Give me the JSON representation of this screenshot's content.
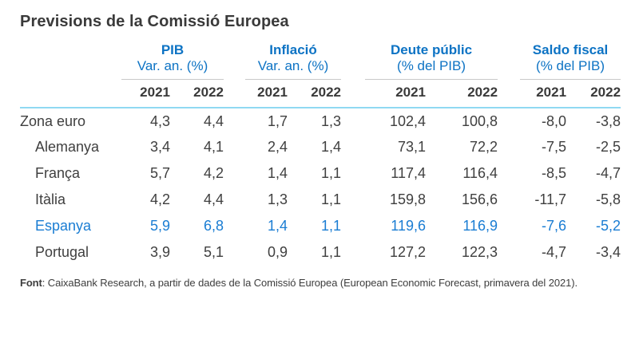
{
  "title": "Previsions de la Comissió Europea",
  "table": {
    "groups": [
      {
        "name": "PIB",
        "subtitle": "Var. an. (%)"
      },
      {
        "name": "Inflació",
        "subtitle": "Var. an. (%)"
      },
      {
        "name": "Deute públic",
        "subtitle": "(% del PIB)"
      },
      {
        "name": "Saldo fiscal",
        "subtitle": "(% del PIB)"
      }
    ],
    "years": [
      "2021",
      "2022"
    ],
    "rows": [
      {
        "label": "Zona euro",
        "values": [
          "4,3",
          "4,4",
          "1,7",
          "1,3",
          "102,4",
          "100,8",
          "-8,0",
          "-3,8"
        ]
      },
      {
        "label": "Alemanya",
        "values": [
          "3,4",
          "4,1",
          "2,4",
          "1,4",
          "73,1",
          "72,2",
          "-7,5",
          "-2,5"
        ]
      },
      {
        "label": "França",
        "values": [
          "5,7",
          "4,2",
          "1,4",
          "1,1",
          "117,4",
          "116,4",
          "-8,5",
          "-4,7"
        ]
      },
      {
        "label": "Itàlia",
        "values": [
          "4,2",
          "4,4",
          "1,3",
          "1,1",
          "159,8",
          "156,6",
          "-11,7",
          "-5,8"
        ]
      },
      {
        "label": "Espanya",
        "values": [
          "5,9",
          "6,8",
          "1,4",
          "1,1",
          "119,6",
          "116,9",
          "-7,6",
          "-5,2"
        ]
      },
      {
        "label": "Portugal",
        "values": [
          "3,9",
          "5,1",
          "0,9",
          "1,1",
          "127,2",
          "122,3",
          "-4,7",
          "-3,4"
        ]
      }
    ]
  },
  "footer": {
    "label": "Font",
    "text": ": CaixaBank Research, a partir de dades de la Comissió Europea (European Economic Forecast, primavera del 2021)."
  },
  "colors": {
    "accent_blue": "#0d73c4",
    "highlight_blue": "#1a7dd3",
    "rule_light_blue": "#8fd9f2",
    "rule_gray": "#c9c9c9",
    "text_dark": "#3f3f3f"
  },
  "chart_data": {
    "type": "table",
    "title": "Previsions de la Comissió Europea",
    "column_groups": [
      {
        "name": "PIB",
        "unit": "Var. an. (%)"
      },
      {
        "name": "Inflació",
        "unit": "Var. an. (%)"
      },
      {
        "name": "Deute públic",
        "unit": "% del PIB"
      },
      {
        "name": "Saldo fiscal",
        "unit": "% del PIB"
      }
    ],
    "years": [
      2021,
      2022
    ],
    "rows": [
      {
        "region": "Zona euro",
        "pib": [
          4.3,
          4.4
        ],
        "inflacio": [
          1.7,
          1.3
        ],
        "deute_public": [
          102.4,
          100.8
        ],
        "saldo_fiscal": [
          -8.0,
          -3.8
        ]
      },
      {
        "region": "Alemanya",
        "pib": [
          3.4,
          4.1
        ],
        "inflacio": [
          2.4,
          1.4
        ],
        "deute_public": [
          73.1,
          72.2
        ],
        "saldo_fiscal": [
          -7.5,
          -2.5
        ]
      },
      {
        "region": "França",
        "pib": [
          5.7,
          4.2
        ],
        "inflacio": [
          1.4,
          1.1
        ],
        "deute_public": [
          117.4,
          116.4
        ],
        "saldo_fiscal": [
          -8.5,
          -4.7
        ]
      },
      {
        "region": "Itàlia",
        "pib": [
          4.2,
          4.4
        ],
        "inflacio": [
          1.3,
          1.1
        ],
        "deute_public": [
          159.8,
          156.6
        ],
        "saldo_fiscal": [
          -11.7,
          -5.8
        ]
      },
      {
        "region": "Espanya",
        "pib": [
          5.9,
          6.8
        ],
        "inflacio": [
          1.4,
          1.1
        ],
        "deute_public": [
          119.6,
          116.9
        ],
        "saldo_fiscal": [
          -7.6,
          -5.2
        ]
      },
      {
        "region": "Portugal",
        "pib": [
          3.9,
          5.1
        ],
        "inflacio": [
          0.9,
          1.1
        ],
        "deute_public": [
          127.2,
          122.3
        ],
        "saldo_fiscal": [
          -4.7,
          -3.4
        ]
      }
    ],
    "highlighted_row": "Espanya",
    "source": "CaixaBank Research, a partir de dades de la Comissió Europea (European Economic Forecast, primavera del 2021)."
  }
}
